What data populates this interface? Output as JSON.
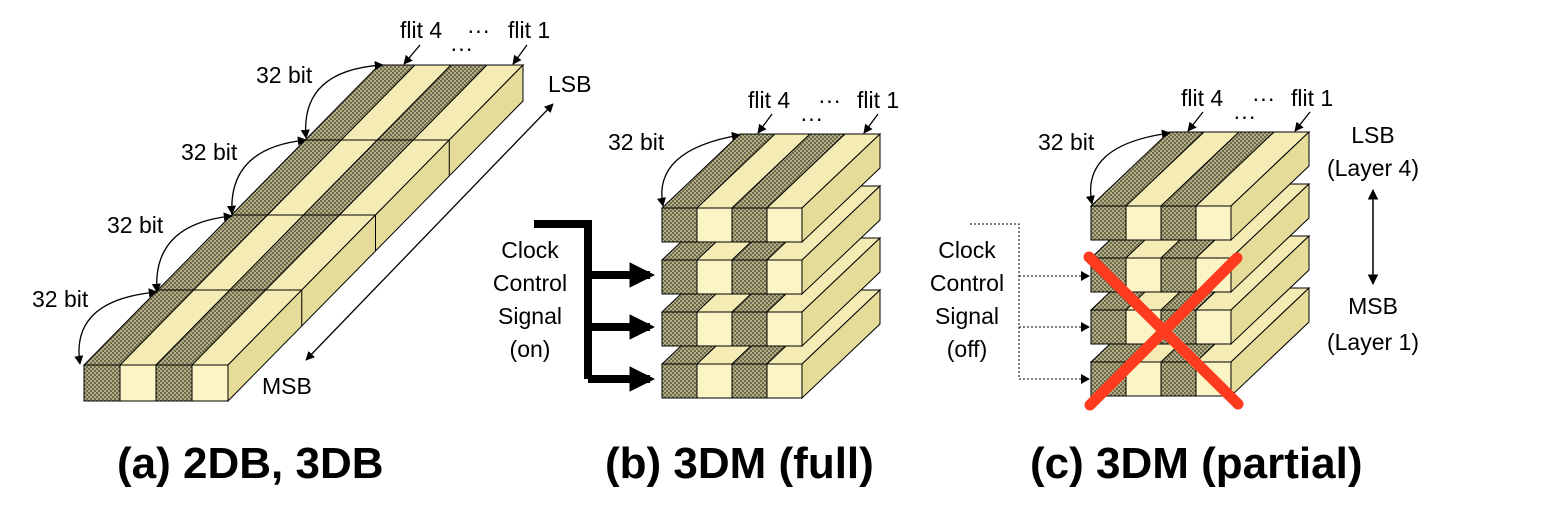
{
  "colors": {
    "yellow_top": "#f4ecb4",
    "yellow_front": "#fbf4c4",
    "yellow_side": "#e6dc9a",
    "dark_a": "#6e6a4c",
    "dark_b": "#b4ae86",
    "cross": "#ff3b1f",
    "stroke": "#000000"
  },
  "panels": {
    "a": {
      "caption": "(a) 2DB, 3DB",
      "width_labels": [
        "32 bit",
        "32 bit",
        "32 bit",
        "32 bit"
      ],
      "flit_first": "flit 4",
      "flit_dots": "···",
      "flit_last": "flit 1",
      "flit_dots_below": "···",
      "lsb": "LSB",
      "msb": "MSB"
    },
    "b": {
      "caption": "(b) 3DM (full)",
      "width_label": "32 bit",
      "flit_first": "flit 4",
      "flit_dots": "···",
      "flit_last": "flit 1",
      "flit_dots_below": "···",
      "signal_lines": [
        "Clock",
        "Control",
        "Signal",
        "(on)"
      ]
    },
    "c": {
      "caption": "(c) 3DM (partial)",
      "width_label": "32 bit",
      "flit_first": "flit 4",
      "flit_dots": "···",
      "flit_last": "flit 1",
      "flit_dots_below": "···",
      "lsb_lines": [
        "LSB",
        "(Layer 4)"
      ],
      "msb_lines": [
        "MSB",
        "(Layer 1)"
      ],
      "signal_lines": [
        "Clock",
        "Control",
        "Signal",
        "(off)"
      ]
    }
  }
}
